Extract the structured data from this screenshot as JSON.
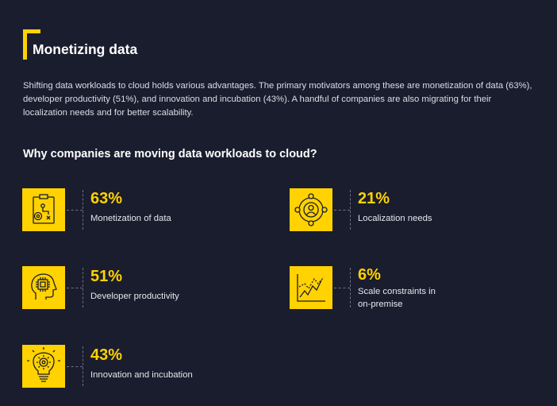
{
  "header": {
    "title": "Monetizing data"
  },
  "intro": "Shifting data workloads to cloud holds various advantages. The primary motivators among these are monetization of data (63%), developer productivity (51%), and innovation and incubation (43%). A handful of companies are also migrating for their localization needs and for better scalability.",
  "subheading": "Why companies are moving data workloads to cloud?",
  "colors": {
    "accent": "#ffd200",
    "background": "#1a1d2e"
  },
  "stats": [
    {
      "value": "63%",
      "label": "Monetization of data",
      "icon": "strategy-board-icon"
    },
    {
      "value": "21%",
      "label": "Localization needs",
      "icon": "network-user-icon"
    },
    {
      "value": "51%",
      "label": "Developer productivity",
      "icon": "brain-chip-icon"
    },
    {
      "value": "6%",
      "label_line1": "Scale constraints in",
      "label_line2": "on-premise",
      "icon": "line-chart-icon"
    },
    {
      "value": "43%",
      "label": "Innovation and incubation",
      "icon": "lightbulb-gear-icon"
    }
  ]
}
